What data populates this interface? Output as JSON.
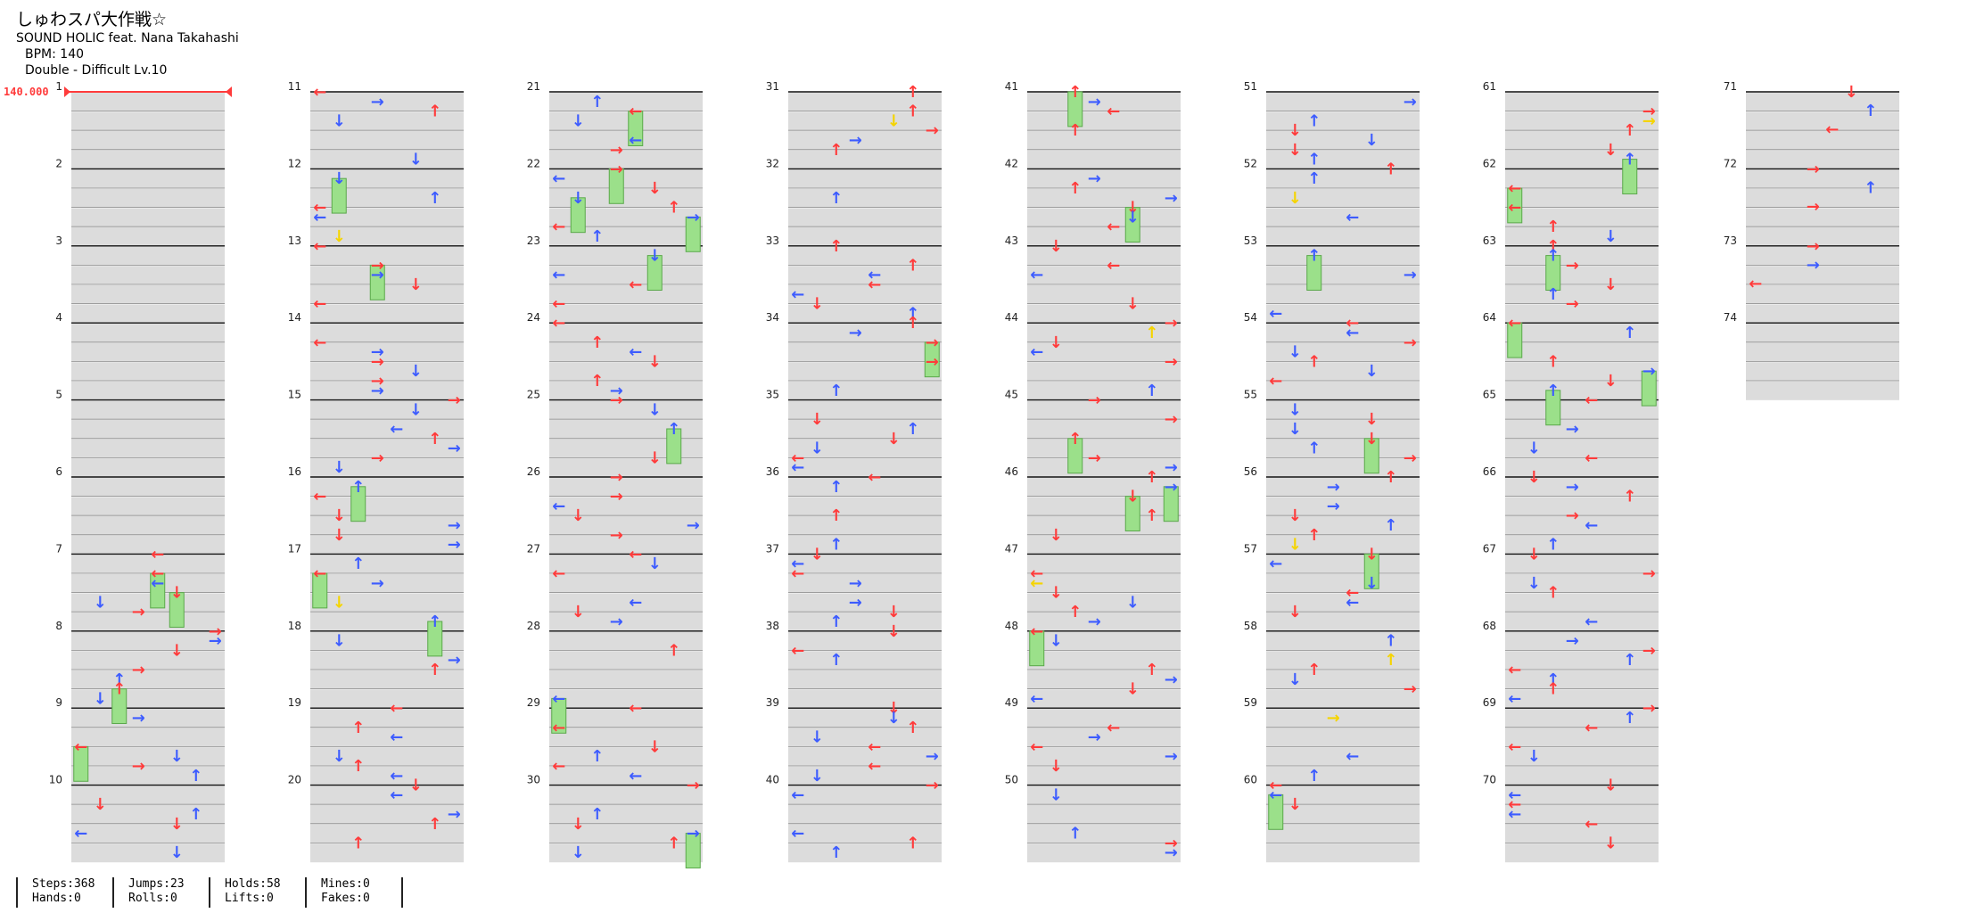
{
  "song": {
    "title": "しゅわスパ大作戦☆",
    "artist": "SOUND HOLIC feat. Nana Takahashi",
    "bpm_label": "BPM: 140",
    "difficulty_label": "Double - Difficult  Lv.10"
  },
  "bpm_marker": "140.000",
  "colors": {
    "quarter": "#ff3b3b",
    "eighth": "#3d5cff",
    "sixteenth": "#f5d400",
    "hold": "#9be08a",
    "band": "#dcdcdc"
  },
  "measure_numbers": [
    1,
    2,
    3,
    4,
    5,
    6,
    7,
    8,
    9,
    10,
    11,
    12,
    13,
    14,
    15,
    16,
    17,
    18,
    19,
    20,
    21,
    22,
    23,
    24,
    25,
    26,
    27,
    28,
    29,
    30,
    31,
    32,
    33,
    34,
    35,
    36,
    37,
    38,
    39,
    40,
    41,
    42,
    43,
    44,
    45,
    46,
    47,
    48,
    49,
    50,
    51,
    52,
    53,
    54,
    55,
    56,
    57,
    58,
    59,
    60,
    61,
    62,
    63,
    64,
    65,
    66,
    67,
    68,
    69,
    70,
    71,
    72,
    73,
    74
  ],
  "stats": [
    {
      "line1": "Steps:368",
      "line2": "Hands:0"
    },
    {
      "line1": "Jumps:23",
      "line2": "Rolls:0"
    },
    {
      "line1": "Holds:58",
      "line2": "Lifts:0"
    },
    {
      "line1": "Mines:0",
      "line2": "Fakes:0"
    }
  ]
}
